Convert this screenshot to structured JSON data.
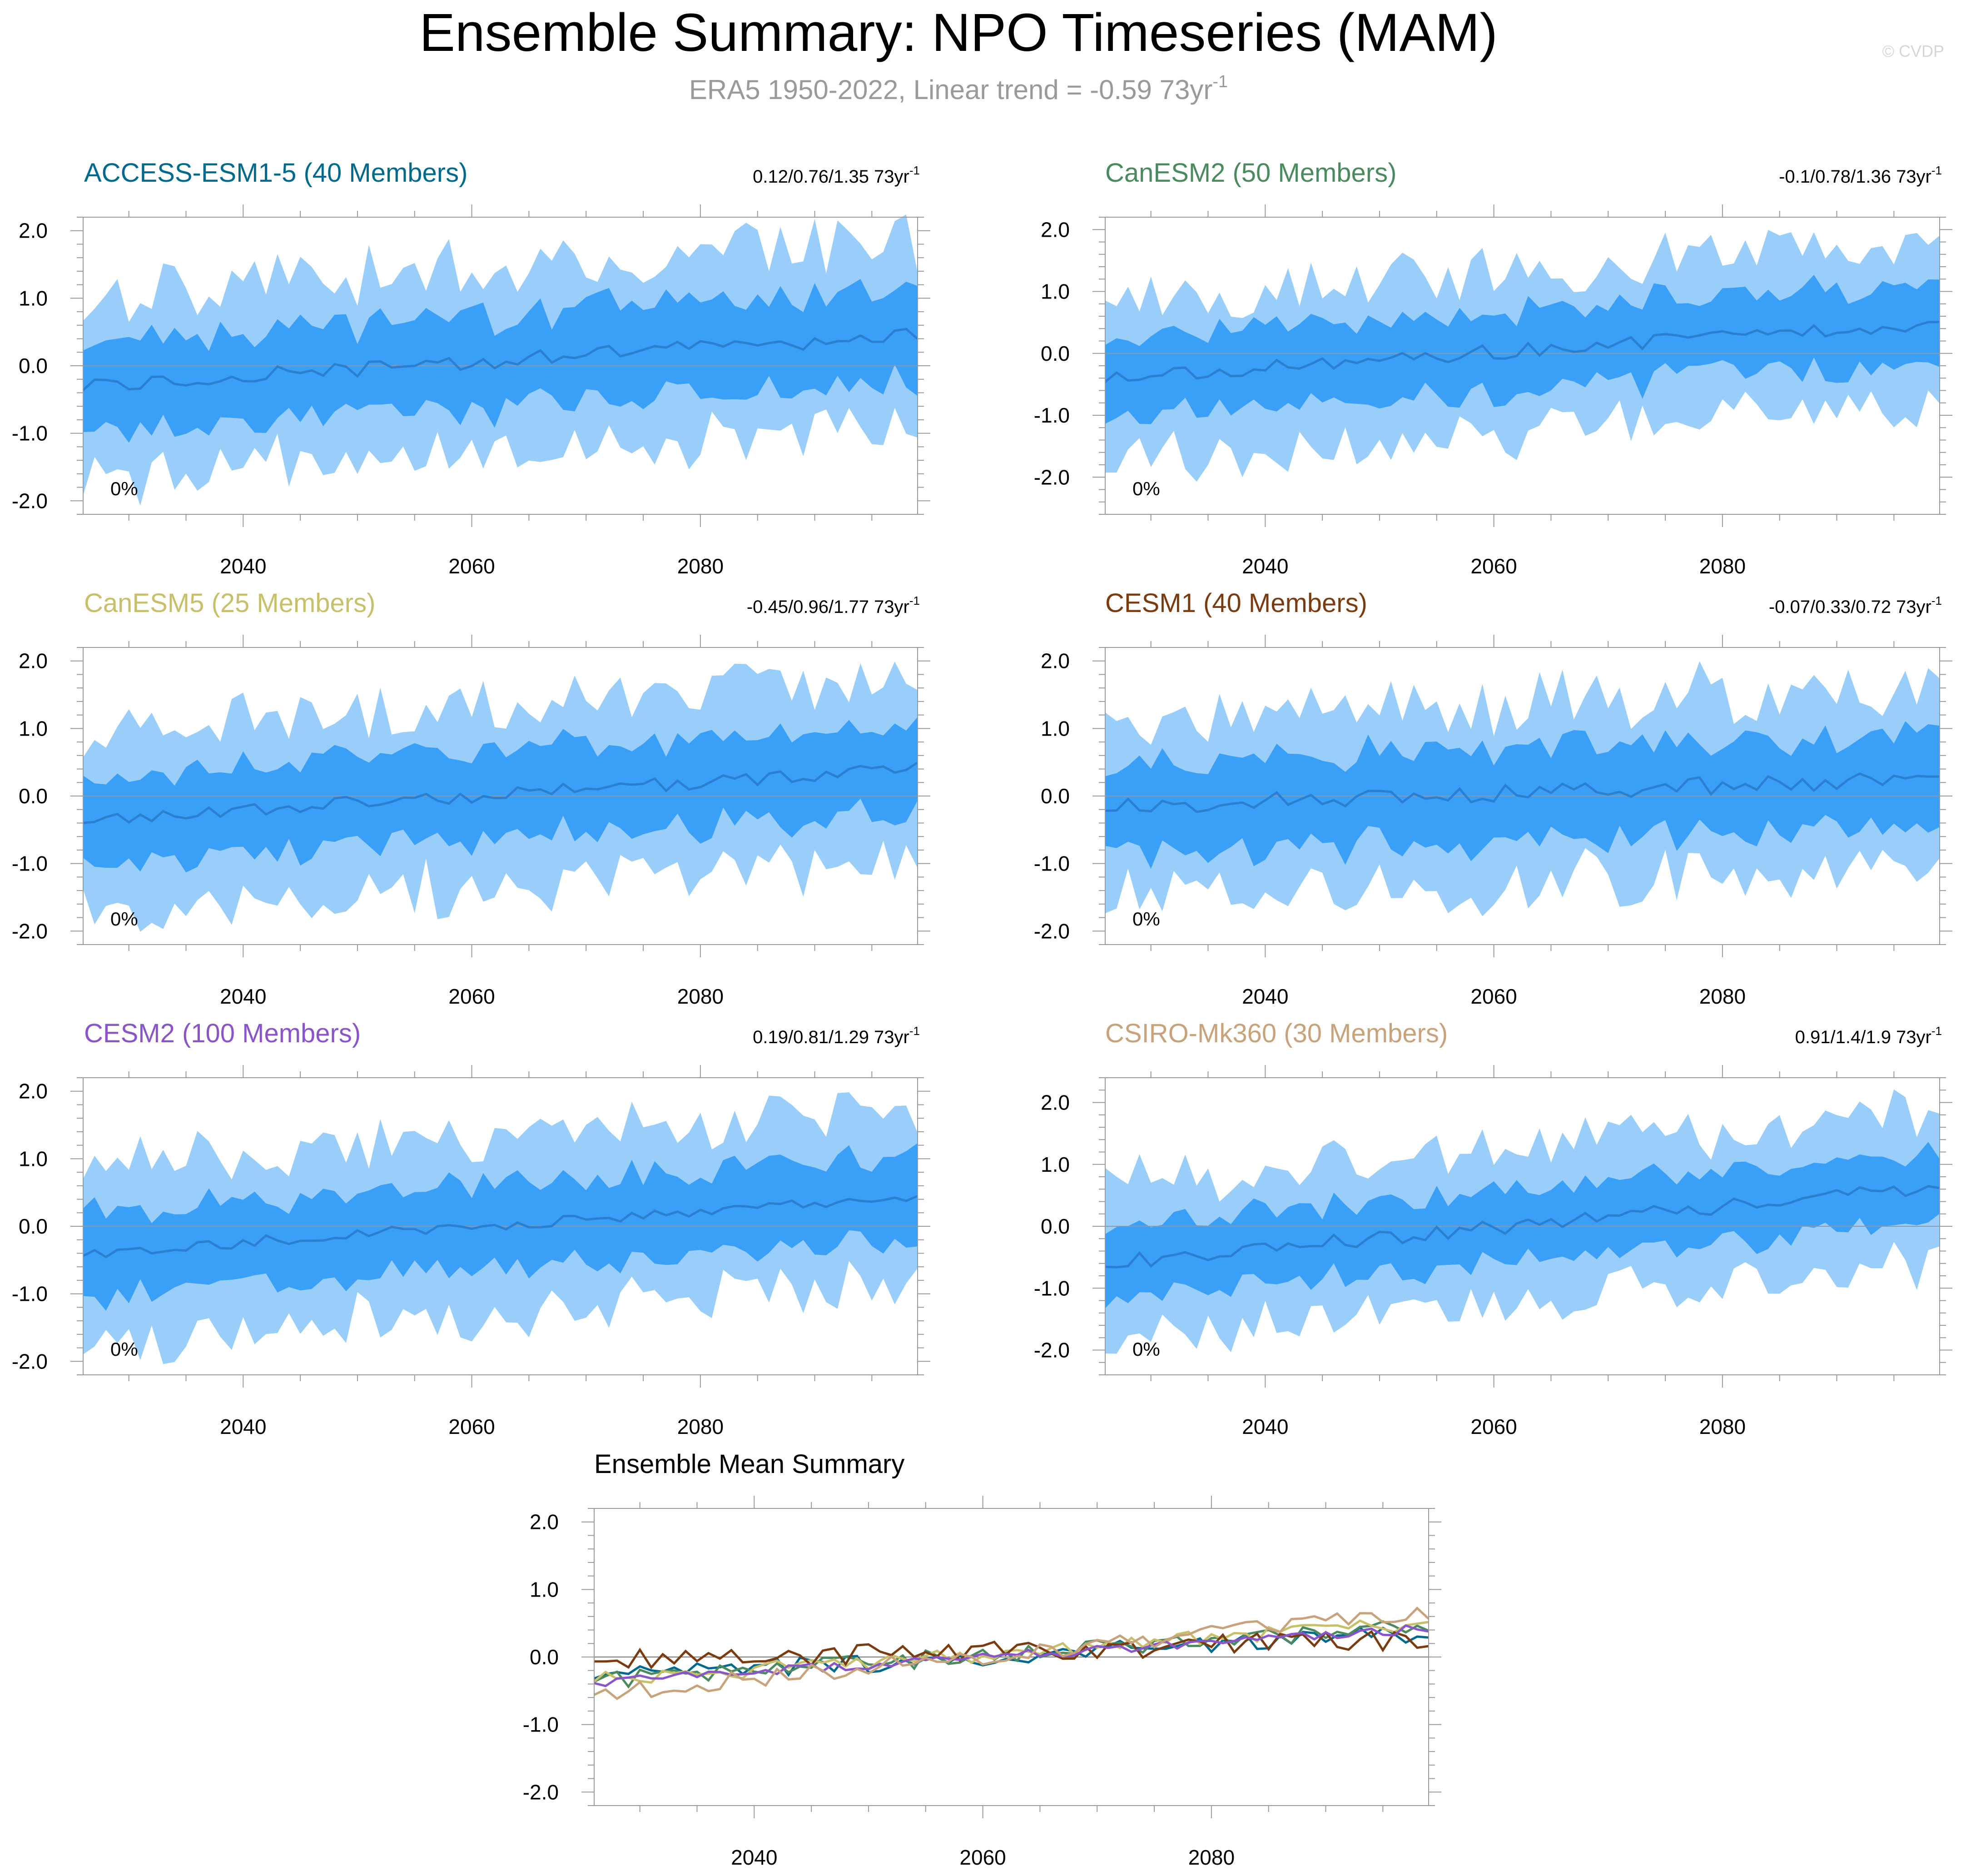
{
  "header": {
    "title": "Ensemble Summary: NPO Timeseries (MAM)",
    "subtitle_main": "ERA5 1950-2022, Linear trend = -0.59 73yr",
    "subtitle_sup": "-1",
    "watermark": "© CVDP"
  },
  "colors": {
    "band_outer": "#99cdfa",
    "band_inner": "#3a9ff6",
    "mean_line": "#2b7fd0",
    "frame": "#999999",
    "zero_line": "#8899aa"
  },
  "chart_data": [
    {
      "type": "area",
      "id": "access",
      "title": "ACCESS-ESM1-5 (40 Members)",
      "title_color": "#006a8e",
      "trend_text": "0.12/0.76/1.35 73yr",
      "trend_sup": "-1",
      "pct_label": "0%",
      "x_start": 2026,
      "x_end": 2099,
      "xlim": [
        2026,
        2099
      ],
      "ylim": [
        -2.2,
        2.2
      ],
      "yticks": [
        2.0,
        1.0,
        0.0,
        -1.0,
        -2.0
      ],
      "ytick_labels": [
        "2.0",
        "1.0",
        "0.0",
        "-1.0",
        "-2.0"
      ],
      "xticks": [
        2040,
        2060,
        2080
      ],
      "xtick_labels": [
        "2040",
        "2060",
        "2080"
      ],
      "mean_start": -0.3,
      "mean_end": 0.45,
      "inner_half": 0.68,
      "outer_half": 1.38,
      "amp": 0.12,
      "seed": 11
    },
    {
      "type": "area",
      "id": "canesm2",
      "title": "CanESM2 (50 Members)",
      "title_color": "#4b8a5f",
      "trend_text": "-0.1/0.78/1.36 73yr",
      "trend_sup": "-1",
      "pct_label": "0%",
      "x_start": 2026,
      "x_end": 2099,
      "xlim": [
        2026,
        2099
      ],
      "ylim": [
        -2.6,
        2.2
      ],
      "yticks": [
        2.0,
        1.0,
        0.0,
        -1.0,
        -2.0
      ],
      "ytick_labels": [
        "2.0",
        "1.0",
        "0.0",
        "-1.0",
        "-2.0"
      ],
      "xticks": [
        2040,
        2060,
        2080
      ],
      "xtick_labels": [
        "2040",
        "2060",
        "2080"
      ],
      "mean_start": -0.4,
      "mean_end": 0.5,
      "inner_half": 0.65,
      "outer_half": 1.3,
      "amp": 0.12,
      "seed": 23
    },
    {
      "type": "area",
      "id": "canesm5",
      "title": "CanESM5 (25 Members)",
      "title_color": "#c8bf6a",
      "trend_text": "-0.45/0.96/1.77 73yr",
      "trend_sup": "-1",
      "pct_label": "0%",
      "x_start": 2026,
      "x_end": 2099,
      "xlim": [
        2026,
        2099
      ],
      "ylim": [
        -2.2,
        2.2
      ],
      "yticks": [
        2.0,
        1.0,
        0.0,
        -1.0,
        -2.0
      ],
      "ytick_labels": [
        "2.0",
        "1.0",
        "0.0",
        "-1.0",
        "-2.0"
      ],
      "xticks": [
        2040,
        2060,
        2080
      ],
      "xtick_labels": [
        "2040",
        "2060",
        "2080"
      ],
      "mean_start": -0.35,
      "mean_end": 0.4,
      "inner_half": 0.65,
      "outer_half": 1.35,
      "amp": 0.1,
      "seed": 37
    },
    {
      "type": "area",
      "id": "cesm1",
      "title": "CESM1 (40 Members)",
      "title_color": "#7a3b10",
      "trend_text": "-0.07/0.33/0.72 73yr",
      "trend_sup": "-1",
      "pct_label": "0%",
      "x_start": 2026,
      "x_end": 2099,
      "xlim": [
        2026,
        2099
      ],
      "ylim": [
        -2.2,
        2.2
      ],
      "yticks": [
        2.0,
        1.0,
        0.0,
        -1.0,
        -2.0
      ],
      "ytick_labels": [
        "2.0",
        "1.0",
        "0.0",
        "-1.0",
        "-2.0"
      ],
      "xticks": [
        2040,
        2060,
        2080
      ],
      "xtick_labels": [
        "2040",
        "2060",
        "2080"
      ],
      "mean_start": -0.15,
      "mean_end": 0.25,
      "inner_half": 0.68,
      "outer_half": 1.35,
      "amp": 0.14,
      "seed": 53
    },
    {
      "type": "area",
      "id": "cesm2",
      "title": "CESM2 (100 Members)",
      "title_color": "#8a55c8",
      "trend_text": "0.19/0.81/1.29 73yr",
      "trend_sup": "-1",
      "pct_label": "0%",
      "x_start": 2026,
      "x_end": 2099,
      "xlim": [
        2026,
        2099
      ],
      "ylim": [
        -2.2,
        2.2
      ],
      "yticks": [
        2.0,
        1.0,
        0.0,
        -1.0,
        -2.0
      ],
      "ytick_labels": [
        "2.0",
        "1.0",
        "0.0",
        "-1.0",
        "-2.0"
      ],
      "xticks": [
        2040,
        2060,
        2080
      ],
      "xtick_labels": [
        "2040",
        "2060",
        "2080"
      ],
      "mean_start": -0.4,
      "mean_end": 0.45,
      "inner_half": 0.62,
      "outer_half": 1.3,
      "amp": 0.08,
      "seed": 71
    },
    {
      "type": "area",
      "id": "csiro",
      "title": "CSIRO-Mk360 (30 Members)",
      "title_color": "#c8a27a",
      "trend_text": "0.91/1.4/1.9 73yr",
      "trend_sup": "-1",
      "pct_label": "0%",
      "x_start": 2026,
      "x_end": 2099,
      "xlim": [
        2026,
        2099
      ],
      "ylim": [
        -2.4,
        2.4
      ],
      "yticks": [
        2.0,
        1.0,
        0.0,
        -1.0,
        -2.0
      ],
      "ytick_labels": [
        "2.0",
        "1.0",
        "0.0",
        "-1.0",
        "-2.0"
      ],
      "xticks": [
        2040,
        2060,
        2080
      ],
      "xtick_labels": [
        "2040",
        "2060",
        "2080"
      ],
      "mean_start": -0.6,
      "mean_end": 0.65,
      "inner_half": 0.58,
      "outer_half": 1.25,
      "amp": 0.12,
      "seed": 89
    },
    {
      "type": "line",
      "id": "ensemble_mean",
      "title": "Ensemble Mean Summary",
      "title_color": "#000000",
      "x_start": 2026,
      "x_end": 2099,
      "xlim": [
        2026,
        2099
      ],
      "ylim": [
        -2.2,
        2.2
      ],
      "yticks": [
        2.0,
        1.0,
        0.0,
        -1.0,
        -2.0
      ],
      "ytick_labels": [
        "2.0",
        "1.0",
        "0.0",
        "-1.0",
        "-2.0"
      ],
      "xticks": [
        2040,
        2060,
        2080
      ],
      "xtick_labels": [
        "2040",
        "2060",
        "2080"
      ],
      "series": [
        {
          "name": "ACCESS-ESM1-5",
          "color": "#006a8e",
          "start": -0.3,
          "end": 0.35,
          "amp": 0.14,
          "seed": 11
        },
        {
          "name": "CanESM2",
          "color": "#4b8a5f",
          "start": -0.35,
          "end": 0.45,
          "amp": 0.13,
          "seed": 23
        },
        {
          "name": "CanESM5",
          "color": "#c8bf6a",
          "start": -0.35,
          "end": 0.5,
          "amp": 0.12,
          "seed": 37
        },
        {
          "name": "CESM1",
          "color": "#7a3b10",
          "start": -0.05,
          "end": 0.25,
          "amp": 0.16,
          "seed": 53
        },
        {
          "name": "CESM2",
          "color": "#8a55c8",
          "start": -0.38,
          "end": 0.42,
          "amp": 0.07,
          "seed": 71
        },
        {
          "name": "CSIRO-Mk360",
          "color": "#c8a27a",
          "start": -0.55,
          "end": 0.65,
          "amp": 0.13,
          "seed": 89
        }
      ]
    }
  ]
}
